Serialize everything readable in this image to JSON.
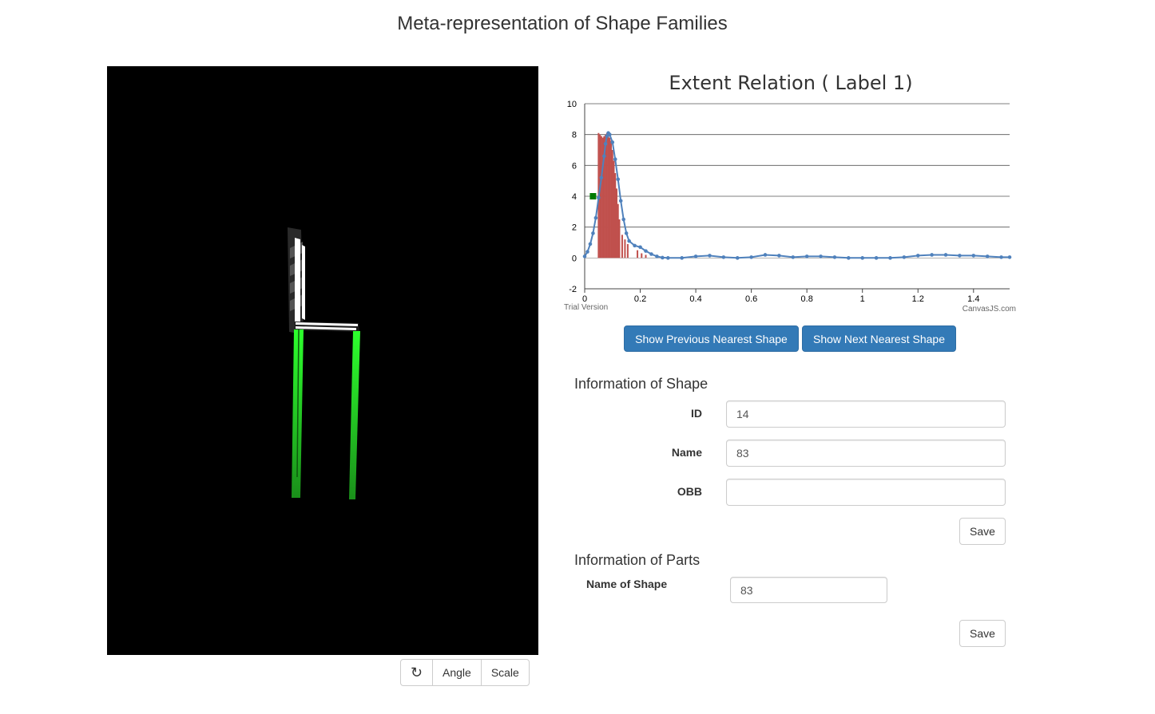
{
  "page": {
    "title": "Meta-representation of Shape Families"
  },
  "viewer": {
    "controls": {
      "reset_icon": "refresh-icon",
      "angle_label": "Angle",
      "scale_label": "Scale"
    },
    "colors": {
      "background": "#000000",
      "frame": "#ffffff",
      "legs": "#22cc22",
      "slats": "#333333"
    }
  },
  "chart_data": {
    "type": "line",
    "title": "Extent Relation ( Label 1)",
    "xlim": [
      0,
      1.53
    ],
    "ylim": [
      -2,
      10
    ],
    "x_ticks": [
      "0",
      "0.2",
      "0.4",
      "0.6",
      "0.8",
      "1",
      "1.2",
      "1.4"
    ],
    "y_ticks": [
      "-2",
      "0",
      "2",
      "4",
      "6",
      "8",
      "10"
    ],
    "grid": true,
    "series": [
      {
        "color": "#4f81bc",
        "points": [
          [
            0,
            0.1
          ],
          [
            0.01,
            0.4
          ],
          [
            0.02,
            0.9
          ],
          [
            0.03,
            1.6
          ],
          [
            0.04,
            2.6
          ],
          [
            0.05,
            3.9
          ],
          [
            0.06,
            5.2
          ],
          [
            0.07,
            6.6
          ],
          [
            0.075,
            7.4
          ],
          [
            0.08,
            7.9
          ],
          [
            0.085,
            8.1
          ],
          [
            0.09,
            8.0
          ],
          [
            0.1,
            7.5
          ],
          [
            0.11,
            6.4
          ],
          [
            0.12,
            5.1
          ],
          [
            0.13,
            3.7
          ],
          [
            0.14,
            2.5
          ],
          [
            0.15,
            1.6
          ],
          [
            0.16,
            1.1
          ],
          [
            0.18,
            0.8
          ],
          [
            0.2,
            0.7
          ],
          [
            0.22,
            0.45
          ],
          [
            0.24,
            0.25
          ],
          [
            0.26,
            0.1
          ],
          [
            0.28,
            0.02
          ],
          [
            0.3,
            0
          ],
          [
            0.35,
            0
          ],
          [
            0.4,
            0.1
          ],
          [
            0.45,
            0.15
          ],
          [
            0.5,
            0.05
          ],
          [
            0.55,
            0
          ],
          [
            0.6,
            0.05
          ],
          [
            0.65,
            0.2
          ],
          [
            0.7,
            0.15
          ],
          [
            0.75,
            0.05
          ],
          [
            0.8,
            0.1
          ],
          [
            0.85,
            0.1
          ],
          [
            0.9,
            0.05
          ],
          [
            0.95,
            0
          ],
          [
            1.0,
            0
          ],
          [
            1.05,
            0
          ],
          [
            1.1,
            0
          ],
          [
            1.15,
            0.05
          ],
          [
            1.2,
            0.15
          ],
          [
            1.25,
            0.2
          ],
          [
            1.3,
            0.2
          ],
          [
            1.35,
            0.15
          ],
          [
            1.4,
            0.15
          ],
          [
            1.45,
            0.1
          ],
          [
            1.5,
            0.05
          ],
          [
            1.53,
            0.05
          ]
        ]
      }
    ],
    "bars": [
      [
        0.05,
        8.1
      ],
      [
        0.055,
        8.0
      ],
      [
        0.06,
        7.9
      ],
      [
        0.065,
        7.8
      ],
      [
        0.07,
        7.9
      ],
      [
        0.075,
        8.0
      ],
      [
        0.08,
        8.1
      ],
      [
        0.085,
        8.0
      ],
      [
        0.09,
        7.8
      ],
      [
        0.095,
        7.6
      ],
      [
        0.1,
        7.0
      ],
      [
        0.105,
        6.3
      ],
      [
        0.11,
        5.5
      ],
      [
        0.115,
        4.5
      ],
      [
        0.12,
        3.5
      ],
      [
        0.125,
        2.5
      ],
      [
        0.135,
        1.5
      ],
      [
        0.145,
        1.2
      ],
      [
        0.155,
        0.9
      ],
      [
        0.19,
        0.5
      ],
      [
        0.205,
        0.3
      ],
      [
        0.22,
        0.2
      ]
    ],
    "bar_color": "#c0504d",
    "marker": {
      "x": 0.03,
      "y": 4.0,
      "color": "#007a00"
    },
    "watermark_left": "Trial Version",
    "watermark_right": "CanvasJS.com"
  },
  "navigation": {
    "prev_label": "Show Previous Nearest Shape",
    "next_label": "Show Next Nearest Shape"
  },
  "shape_info": {
    "title": "Information of Shape",
    "id_label": "ID",
    "id_value": "14",
    "name_label": "Name",
    "name_value": "83",
    "obb_label": "OBB",
    "obb_value": "",
    "save_label": "Save"
  },
  "parts_info": {
    "title": "Information of Parts",
    "name_label": "Name of Shape",
    "name_value": "83",
    "save_label": "Save"
  }
}
